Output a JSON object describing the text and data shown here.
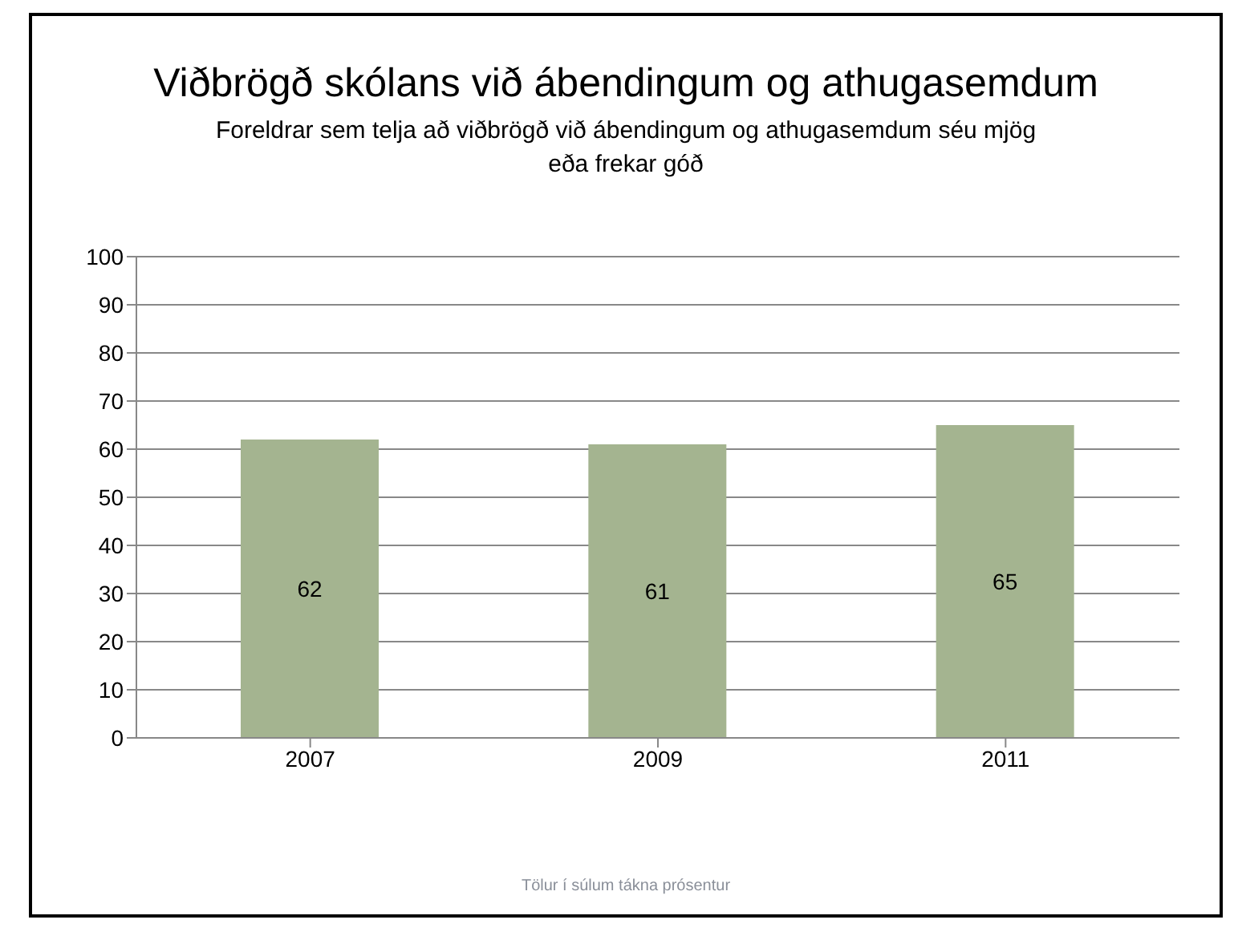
{
  "chart_data": {
    "type": "bar",
    "title": "Viðbrögð skólans við ábendingum og athugasemdum",
    "subtitle": "Foreldrar sem telja að viðbrögð við ábendingum og athugasemdum séu mjög eða frekar góð",
    "categories": [
      "2007",
      "2009",
      "2011"
    ],
    "values": [
      62,
      61,
      65
    ],
    "color": "#a4b490",
    "ylim": [
      0,
      100
    ],
    "yticks": [
      0,
      10,
      20,
      30,
      40,
      50,
      60,
      70,
      80,
      90,
      100
    ],
    "grid": "y",
    "data_labels": true,
    "annotations": [
      "Tölur í súlum tákna prósentur"
    ]
  }
}
